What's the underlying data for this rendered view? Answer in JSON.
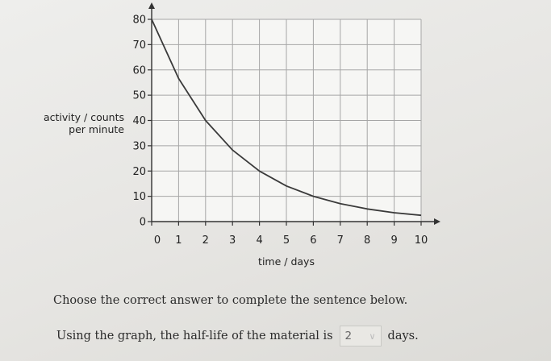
{
  "chart_data": {
    "type": "line",
    "xlabel": "time / days",
    "ylabel": "activity / counts per minute",
    "x_ticks": [
      0,
      1,
      2,
      3,
      4,
      5,
      6,
      7,
      8,
      9,
      10
    ],
    "y_ticks": [
      0,
      10,
      20,
      30,
      40,
      50,
      60,
      70,
      80
    ],
    "xlim": [
      0,
      10
    ],
    "ylim": [
      0,
      80
    ],
    "grid": true,
    "series": [
      {
        "x": [
          0,
          1,
          2,
          3,
          4,
          5,
          6,
          7,
          8,
          9,
          10
        ],
        "y": [
          80,
          56.6,
          40,
          28.3,
          20,
          14.1,
          10,
          7.1,
          5,
          3.5,
          2.5
        ]
      }
    ]
  },
  "question": "Choose the correct answer to complete the sentence below.",
  "sentence": {
    "before": "Using the graph, the half-life of the material is",
    "selected": "2",
    "after": "days."
  }
}
